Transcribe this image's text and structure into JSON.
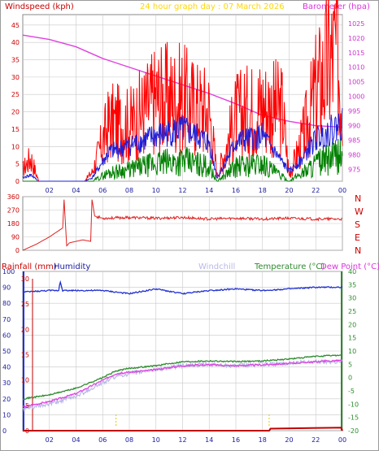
{
  "header": {
    "left_label": "Windspeed (kph)",
    "center_label": "24 hour graph day : 07 March 2026",
    "right_label": "Barometer (hpa)"
  },
  "bottom_header": {
    "rainfall": "Rainfall (mm)",
    "humidity": "Humidity",
    "windchill": "Windchill",
    "temperature": "Temperature (°C)",
    "dewpoint": "Dew Point (°C)"
  },
  "colors": {
    "windspeed": "#ff0000",
    "windavg": "#1f1fd8",
    "windlow": "#008000",
    "barometer": "#e040e0",
    "direction": "#e02020",
    "humidity": "#1f2fd0",
    "windchill": "#b8b8e8",
    "temperature": "#2e8b2e",
    "dewpoint": "#e040e0",
    "rainfall": "#c00000",
    "grid": "#c8c8c8",
    "title": "#ffd700"
  },
  "chart_data": [
    {
      "type": "line",
      "name": "wind-baro",
      "x_ticks": [
        "02",
        "04",
        "06",
        "08",
        "10",
        "12",
        "14",
        "16",
        "18",
        "20",
        "22",
        "00"
      ],
      "y_left_ticks": [
        "0",
        "5",
        "10",
        "15",
        "20",
        "25",
        "30",
        "35",
        "40",
        "45"
      ],
      "y_left_range": [
        0,
        48
      ],
      "y_right_ticks": [
        "975",
        "980",
        "985",
        "990",
        "995",
        "1000",
        "1005",
        "1010",
        "1015",
        "1020",
        "1025"
      ],
      "y_right_range": [
        971,
        1028
      ],
      "barometer": {
        "x": [
          0,
          2,
          4,
          6,
          8,
          10,
          12,
          14,
          16,
          18,
          20,
          22,
          24
        ],
        "y": [
          1021,
          1019.5,
          1017,
          1013,
          1010,
          1007,
          1004,
          1001,
          997.5,
          993.5,
          991.5,
          990,
          989.5
        ]
      },
      "wind_gust_env": {
        "x": [
          0,
          0.6,
          1.2,
          2.8,
          4.6,
          5.2,
          6.5,
          8,
          10,
          12,
          13,
          14,
          14.6,
          16,
          18,
          19.5,
          20,
          21,
          22,
          23,
          23.6,
          24
        ],
        "y": [
          4,
          8,
          0,
          0,
          0,
          3,
          20,
          19,
          28,
          28,
          25,
          24,
          2,
          22,
          26,
          24,
          2,
          14,
          30,
          40,
          44,
          26
        ]
      },
      "wind_avg_env": {
        "x": [
          0,
          0.6,
          1.2,
          2.8,
          4.6,
          5.2,
          6.5,
          8,
          10,
          12,
          14,
          14.6,
          16,
          18,
          20,
          21,
          22,
          24
        ],
        "y": [
          1,
          2,
          0,
          0,
          0,
          1,
          9,
          11,
          14,
          16,
          12,
          1,
          12,
          14,
          3,
          7,
          13,
          18
        ]
      },
      "wind_low_env": {
        "x": [
          0,
          4.6,
          5.2,
          6.5,
          8,
          10,
          12,
          14,
          14.6,
          16,
          18,
          20,
          21,
          22,
          24
        ],
        "y": [
          0,
          0,
          0,
          3,
          4,
          6,
          7,
          5,
          0,
          5,
          6,
          0,
          3,
          6,
          9
        ]
      }
    },
    {
      "type": "line",
      "name": "wind-direction",
      "y_left_ticks": [
        "0",
        "90",
        "180",
        "270",
        "360"
      ],
      "y_range": [
        0,
        360
      ],
      "compass_labels": [
        "N",
        "W",
        "S",
        "E",
        "N"
      ],
      "x": [
        0,
        1,
        2,
        3,
        3.1,
        3.3,
        3.5,
        4.5,
        5.1,
        5.2,
        5.4,
        6,
        8,
        10,
        12,
        14,
        16,
        18,
        20,
        22,
        24
      ],
      "y": [
        0,
        40,
        90,
        150,
        340,
        30,
        50,
        70,
        60,
        340,
        230,
        215,
        220,
        215,
        220,
        210,
        215,
        210,
        215,
        210,
        210
      ]
    },
    {
      "type": "line",
      "name": "temp-humidity",
      "rain_ticks": [
        "0",
        "5",
        "10",
        "15",
        "20",
        "25",
        "30"
      ],
      "humidity_ticks": [
        "0",
        "10",
        "20",
        "30",
        "40",
        "50",
        "60",
        "70",
        "80",
        "90",
        "100"
      ],
      "humidity_range": [
        0,
        100
      ],
      "temp_ticks": [
        "-20",
        "-15",
        "-10",
        "-5",
        "0",
        "5",
        "10",
        "15",
        "20",
        "25",
        "30",
        "35",
        "40"
      ],
      "temp_range": [
        -20,
        40
      ],
      "humidity": {
        "x": [
          0,
          2,
          2.7,
          2.8,
          3,
          4,
          6,
          8,
          10,
          12,
          14,
          16,
          18,
          20,
          22,
          24
        ],
        "y": [
          87,
          88,
          88,
          94,
          88,
          88,
          88,
          86,
          89,
          86,
          88,
          89,
          88,
          89,
          90,
          90
        ]
      },
      "temperature": {
        "x": [
          0,
          2,
          4,
          6,
          7,
          8,
          10,
          12,
          14,
          16,
          18,
          20,
          22,
          24
        ],
        "y": [
          -8,
          -6.5,
          -4,
          0,
          2.5,
          3.5,
          4.5,
          6,
          6.3,
          6,
          6.3,
          7,
          8,
          8.5
        ]
      },
      "windchill": {
        "x": [
          0,
          2,
          4,
          6,
          7,
          8,
          10,
          12,
          14,
          16,
          18,
          20,
          22,
          24
        ],
        "y": [
          -12,
          -10,
          -7,
          -2,
          0.5,
          1.5,
          3,
          4.5,
          5,
          4.5,
          5,
          5.5,
          6,
          6
        ]
      },
      "dewpoint": {
        "x": [
          0,
          2,
          4,
          6,
          7,
          8,
          10,
          12,
          14,
          16,
          18,
          20,
          22,
          24
        ],
        "y": [
          -11,
          -9,
          -6,
          -1,
          1.5,
          2,
          3,
          4.5,
          4.8,
          4.5,
          4.8,
          5.3,
          6,
          6.5
        ]
      },
      "rainfall": {
        "x": [
          0,
          18.5,
          18.6,
          23.9,
          24
        ],
        "y": [
          0,
          0,
          0.4,
          0.6,
          0
        ]
      },
      "rain_markers_x": [
        7,
        18.5
      ]
    }
  ]
}
